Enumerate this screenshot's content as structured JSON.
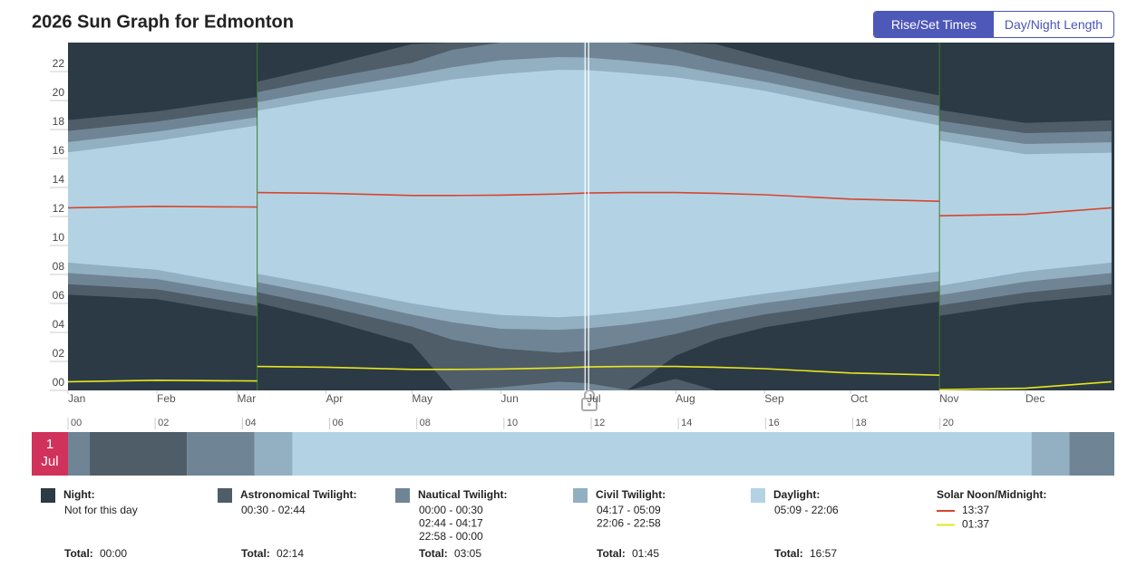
{
  "header": {
    "title": "2026 Sun Graph for Edmonton",
    "buttons": [
      "Rise/Set Times",
      "Day/Night Length"
    ]
  },
  "chart_data": {
    "type": "sun",
    "x": [
      1,
      32,
      67,
      67,
      91,
      121,
      135,
      152,
      172,
      182,
      196,
      213,
      227,
      244,
      274,
      305,
      305,
      335,
      365
    ],
    "xlim": [
      1,
      366
    ],
    "xticks": [
      {
        "value": 1,
        "label": "Jan"
      },
      {
        "value": 32,
        "label": "Feb"
      },
      {
        "value": 60,
        "label": "Mar"
      },
      {
        "value": 91,
        "label": "Apr"
      },
      {
        "value": 121,
        "label": "May"
      },
      {
        "value": 152,
        "label": "Jun"
      },
      {
        "value": 182,
        "label": "Jul"
      },
      {
        "value": 213,
        "label": "Aug"
      },
      {
        "value": 244,
        "label": "Sep"
      },
      {
        "value": 274,
        "label": "Oct"
      },
      {
        "value": 305,
        "label": "Nov"
      },
      {
        "value": 335,
        "label": "Dec"
      }
    ],
    "ylim": [
      0,
      24
    ],
    "yticks": [
      {
        "value": 0,
        "label": "00"
      },
      {
        "value": 2,
        "label": "02"
      },
      {
        "value": 4,
        "label": "04"
      },
      {
        "value": 6,
        "label": "06"
      },
      {
        "value": 8,
        "label": "08"
      },
      {
        "value": 10,
        "label": "10"
      },
      {
        "value": 12,
        "label": "12"
      },
      {
        "value": 14,
        "label": "14"
      },
      {
        "value": 16,
        "label": "16"
      },
      {
        "value": 18,
        "label": "18"
      },
      {
        "value": 20,
        "label": "20"
      },
      {
        "value": 22,
        "label": "22"
      }
    ],
    "total_label": "Total:",
    "bands": [
      {
        "name": "Night:",
        "color": "#2c3a45",
        "times": [
          "Not for this day"
        ],
        "total": "00:00"
      },
      {
        "name": "Astronomical Twilight:",
        "color": "#4f5d68",
        "times": [
          "00:30 - 02:44"
        ],
        "total": "02:14",
        "start": [
          6.6,
          6.3,
          5.1,
          6.05,
          4.9,
          3.2,
          null,
          null,
          null,
          null,
          null,
          2.4,
          3.5,
          4.35,
          5.3,
          6.12,
          5.15,
          6.05,
          6.6
        ],
        "end": [
          18.65,
          19.25,
          20.25,
          21.3,
          22.4,
          23.9,
          null,
          null,
          null,
          null,
          null,
          24.8,
          23.9,
          22.98,
          21.55,
          20.35,
          19.35,
          18.45,
          18.63
        ]
      },
      {
        "name": "Nautical Twilight:",
        "color": "#6f8595",
        "times": [
          "00:00 - 00:30",
          "02:44 - 04:17",
          "22:58 - 00:00"
        ],
        "total": "03:05",
        "start": [
          7.33,
          6.98,
          5.82,
          6.78,
          5.78,
          4.4,
          3.5,
          2.9,
          2.6,
          2.73,
          3.2,
          3.9,
          4.6,
          5.25,
          6.07,
          6.85,
          5.87,
          6.75,
          7.33
        ],
        "end": [
          17.9,
          18.55,
          19.53,
          20.57,
          21.52,
          22.6,
          23.5,
          24.2,
          24.6,
          24.5,
          24.05,
          23.5,
          22.8,
          22.08,
          20.78,
          19.63,
          18.6,
          17.75,
          17.88
        ]
      },
      {
        "name": "Civil Twilight:",
        "color": "#93afc2",
        "times": [
          "04:17 - 05:09",
          "22:06 - 22:58"
        ],
        "total": "01:45",
        "start": [
          8.1,
          7.68,
          6.5,
          7.47,
          6.55,
          5.23,
          4.7,
          4.25,
          4.18,
          4.28,
          4.55,
          5.0,
          5.5,
          6.03,
          6.8,
          7.55,
          6.57,
          7.5,
          8.1
        ],
        "end": [
          17.13,
          17.85,
          18.85,
          19.88,
          20.75,
          21.78,
          22.3,
          22.78,
          23.0,
          22.97,
          22.75,
          22.4,
          21.9,
          21.3,
          20.07,
          18.93,
          17.9,
          17.0,
          17.12
        ]
      },
      {
        "name": "Daylight:",
        "color": "#b3d3e5",
        "times": [
          "05:09 - 22:06"
        ],
        "total": "16:57",
        "start": [
          8.82,
          8.32,
          7.08,
          8.05,
          7.17,
          6.0,
          5.57,
          5.2,
          5.05,
          5.15,
          5.4,
          5.8,
          6.2,
          6.67,
          7.42,
          8.2,
          7.22,
          8.2,
          8.82
        ],
        "end": [
          16.42,
          17.22,
          18.28,
          19.3,
          20.12,
          21.0,
          21.45,
          21.82,
          22.12,
          22.1,
          21.9,
          21.6,
          21.2,
          20.67,
          19.45,
          18.28,
          17.25,
          16.3,
          16.4
        ]
      }
    ],
    "lines": {
      "name": "Solar Noon/Midnight:",
      "series": [
        {
          "label": "13:37",
          "color": "#d8452e",
          "values": [
            12.6,
            12.7,
            12.65,
            13.65,
            13.6,
            13.45,
            13.45,
            13.47,
            13.55,
            13.62,
            13.65,
            13.65,
            13.6,
            13.5,
            13.2,
            13.05,
            12.05,
            12.15,
            12.6
          ]
        },
        {
          "label": "01:37",
          "color": "#e6e620",
          "values": [
            0.6,
            0.7,
            0.65,
            1.65,
            1.6,
            1.45,
            1.45,
            1.47,
            1.55,
            1.62,
            1.65,
            1.65,
            1.6,
            1.5,
            1.2,
            1.05,
            0.05,
            0.15,
            0.6
          ]
        }
      ]
    },
    "day_bar": {
      "day": "1",
      "month": "Jul",
      "x": 182,
      "color": "#d0325b",
      "xlim": [
        0,
        24
      ],
      "xticks": [
        {
          "value": 0,
          "label": "00"
        },
        {
          "value": 2,
          "label": "02"
        },
        {
          "value": 4,
          "label": "04"
        },
        {
          "value": 6,
          "label": "06"
        },
        {
          "value": 8,
          "label": "08"
        },
        {
          "value": 10,
          "label": "10"
        },
        {
          "value": 12,
          "label": "12"
        },
        {
          "value": 14,
          "label": "14"
        },
        {
          "value": 16,
          "label": "16"
        },
        {
          "value": 18,
          "label": "18"
        },
        {
          "value": 20,
          "label": "20"
        }
      ],
      "segments": [
        {
          "start": 0,
          "end": 0.5,
          "color": "#6f8595"
        },
        {
          "start": 0.5,
          "end": 2.73,
          "color": "#4f5d68"
        },
        {
          "start": 2.73,
          "end": 4.28,
          "color": "#6f8595"
        },
        {
          "start": 4.28,
          "end": 5.15,
          "color": "#93afc2"
        },
        {
          "start": 5.15,
          "end": 22.1,
          "color": "#b3d3e5"
        },
        {
          "start": 22.1,
          "end": 22.97,
          "color": "#93afc2"
        },
        {
          "start": 22.97,
          "end": 24,
          "color": "#6f8595"
        }
      ]
    }
  }
}
